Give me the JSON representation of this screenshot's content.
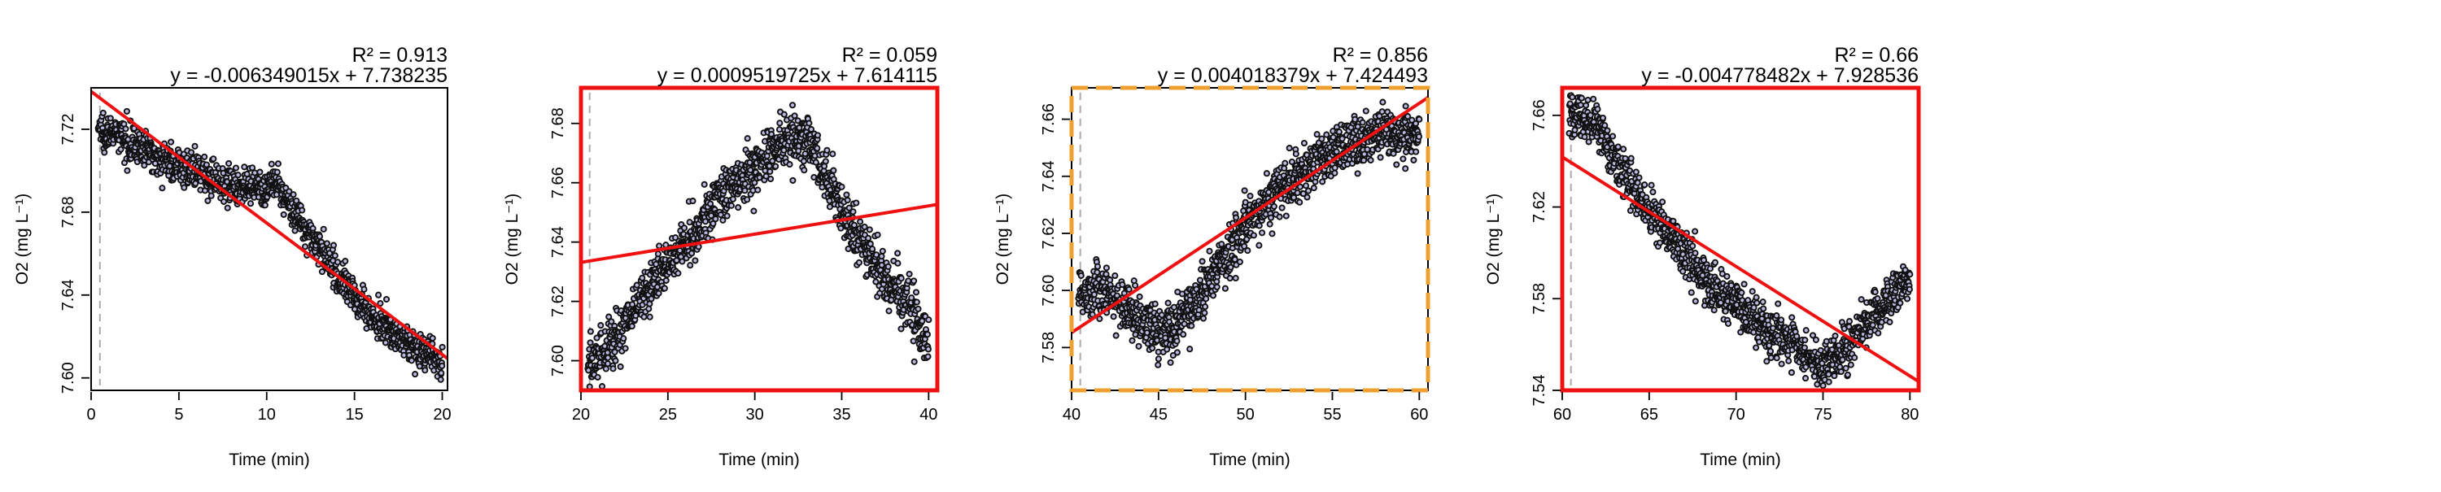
{
  "chart_data": [
    {
      "type": "scatter",
      "xlabel": "Time (min)",
      "ylabel": "O2 (mg L⁻¹)",
      "r2_label": "R² = 0.913",
      "equation": "y = -0.006349015x + 7.738235",
      "xlim": [
        0,
        20.3
      ],
      "ylim": [
        7.594,
        7.74
      ],
      "xticks": [
        "0",
        "5",
        "10",
        "15",
        "20"
      ],
      "yticks": [
        "7.60",
        "7.64",
        "7.68",
        "7.72"
      ],
      "border": "plain",
      "start_marker_x": 0.5,
      "fit": {
        "slope": -0.006349015,
        "intercept": 7.738235
      },
      "trend": [
        {
          "x": 0,
          "y": 7.722
        },
        {
          "x": 2,
          "y": 7.715
        },
        {
          "x": 4,
          "y": 7.706
        },
        {
          "x": 6,
          "y": 7.699
        },
        {
          "x": 8,
          "y": 7.693
        },
        {
          "x": 9.5,
          "y": 7.69
        },
        {
          "x": 10.5,
          "y": 7.694
        },
        {
          "x": 12,
          "y": 7.675
        },
        {
          "x": 14,
          "y": 7.65
        },
        {
          "x": 16,
          "y": 7.63
        },
        {
          "x": 18,
          "y": 7.617
        },
        {
          "x": 20,
          "y": 7.607
        }
      ],
      "noise": 0.0042
    },
    {
      "type": "scatter",
      "xlabel": "Time (min)",
      "ylabel": "O2 (mg L⁻¹)",
      "r2_label": "R² = 0.059",
      "equation": "y = 0.0009519725x + 7.614115",
      "xlim": [
        20,
        40.5
      ],
      "ylim": [
        7.59,
        7.692
      ],
      "xticks": [
        "20",
        "25",
        "30",
        "35",
        "40"
      ],
      "yticks": [
        "7.60",
        "7.62",
        "7.64",
        "7.66",
        "7.68"
      ],
      "border": "red",
      "start_marker_x": 20.5,
      "fit": {
        "slope": 0.0009519725,
        "intercept": 7.614115
      },
      "trend": [
        {
          "x": 20.5,
          "y": 7.598
        },
        {
          "x": 22,
          "y": 7.608
        },
        {
          "x": 24,
          "y": 7.625
        },
        {
          "x": 26,
          "y": 7.64
        },
        {
          "x": 28,
          "y": 7.655
        },
        {
          "x": 30,
          "y": 7.665
        },
        {
          "x": 32,
          "y": 7.675
        },
        {
          "x": 33,
          "y": 7.675
        },
        {
          "x": 34,
          "y": 7.663
        },
        {
          "x": 36,
          "y": 7.64
        },
        {
          "x": 38,
          "y": 7.625
        },
        {
          "x": 40,
          "y": 7.607
        }
      ],
      "noise": 0.0045
    },
    {
      "type": "scatter",
      "xlabel": "Time (min)",
      "ylabel": "O2 (mg L⁻¹)",
      "r2_label": "R² = 0.856",
      "equation": "y = 0.004018379x + 7.424493",
      "xlim": [
        40,
        60.5
      ],
      "ylim": [
        7.565,
        7.671
      ],
      "xticks": [
        "40",
        "45",
        "50",
        "55",
        "60"
      ],
      "yticks": [
        "7.58",
        "7.60",
        "7.62",
        "7.64",
        "7.66"
      ],
      "border": "orange-dashed",
      "start_marker_x": 40.5,
      "fit": {
        "slope": 0.004018379,
        "intercept": 7.424493
      },
      "trend": [
        {
          "x": 40.5,
          "y": 7.6
        },
        {
          "x": 42,
          "y": 7.6
        },
        {
          "x": 43.5,
          "y": 7.592
        },
        {
          "x": 45,
          "y": 7.585
        },
        {
          "x": 46,
          "y": 7.588
        },
        {
          "x": 47.5,
          "y": 7.6
        },
        {
          "x": 50,
          "y": 7.622
        },
        {
          "x": 52,
          "y": 7.636
        },
        {
          "x": 54,
          "y": 7.645
        },
        {
          "x": 56,
          "y": 7.65
        },
        {
          "x": 58,
          "y": 7.656
        },
        {
          "x": 60,
          "y": 7.655
        }
      ],
      "noise": 0.0045
    },
    {
      "type": "scatter",
      "xlabel": "Time (min)",
      "ylabel": "O2 (mg L⁻¹)",
      "r2_label": "R² = 0.66",
      "equation": "y = -0.004778482x + 7.928536",
      "xlim": [
        60,
        80.5
      ],
      "ylim": [
        7.54,
        7.672
      ],
      "xticks": [
        "60",
        "65",
        "70",
        "75",
        "80"
      ],
      "yticks": [
        "7.54",
        "7.58",
        "7.62",
        "7.66"
      ],
      "border": "red",
      "start_marker_x": 60.5,
      "fit": {
        "slope": -0.004778482,
        "intercept": 7.928536
      },
      "trend": [
        {
          "x": 60.5,
          "y": 7.66
        },
        {
          "x": 62,
          "y": 7.655
        },
        {
          "x": 64,
          "y": 7.628
        },
        {
          "x": 66,
          "y": 7.61
        },
        {
          "x": 68,
          "y": 7.59
        },
        {
          "x": 70,
          "y": 7.578
        },
        {
          "x": 72,
          "y": 7.565
        },
        {
          "x": 74,
          "y": 7.555
        },
        {
          "x": 75,
          "y": 7.551
        },
        {
          "x": 76,
          "y": 7.556
        },
        {
          "x": 78,
          "y": 7.573
        },
        {
          "x": 80,
          "y": 7.588
        }
      ],
      "noise": 0.0048
    }
  ],
  "colors": {
    "points": "#111111",
    "point_highlight": "#b8b8e0",
    "fit_line": "#ee1111",
    "highlight_border_red": "#ee1111",
    "highlight_border_orange": "#f0a030",
    "start_marker": "#aaaaaa"
  }
}
